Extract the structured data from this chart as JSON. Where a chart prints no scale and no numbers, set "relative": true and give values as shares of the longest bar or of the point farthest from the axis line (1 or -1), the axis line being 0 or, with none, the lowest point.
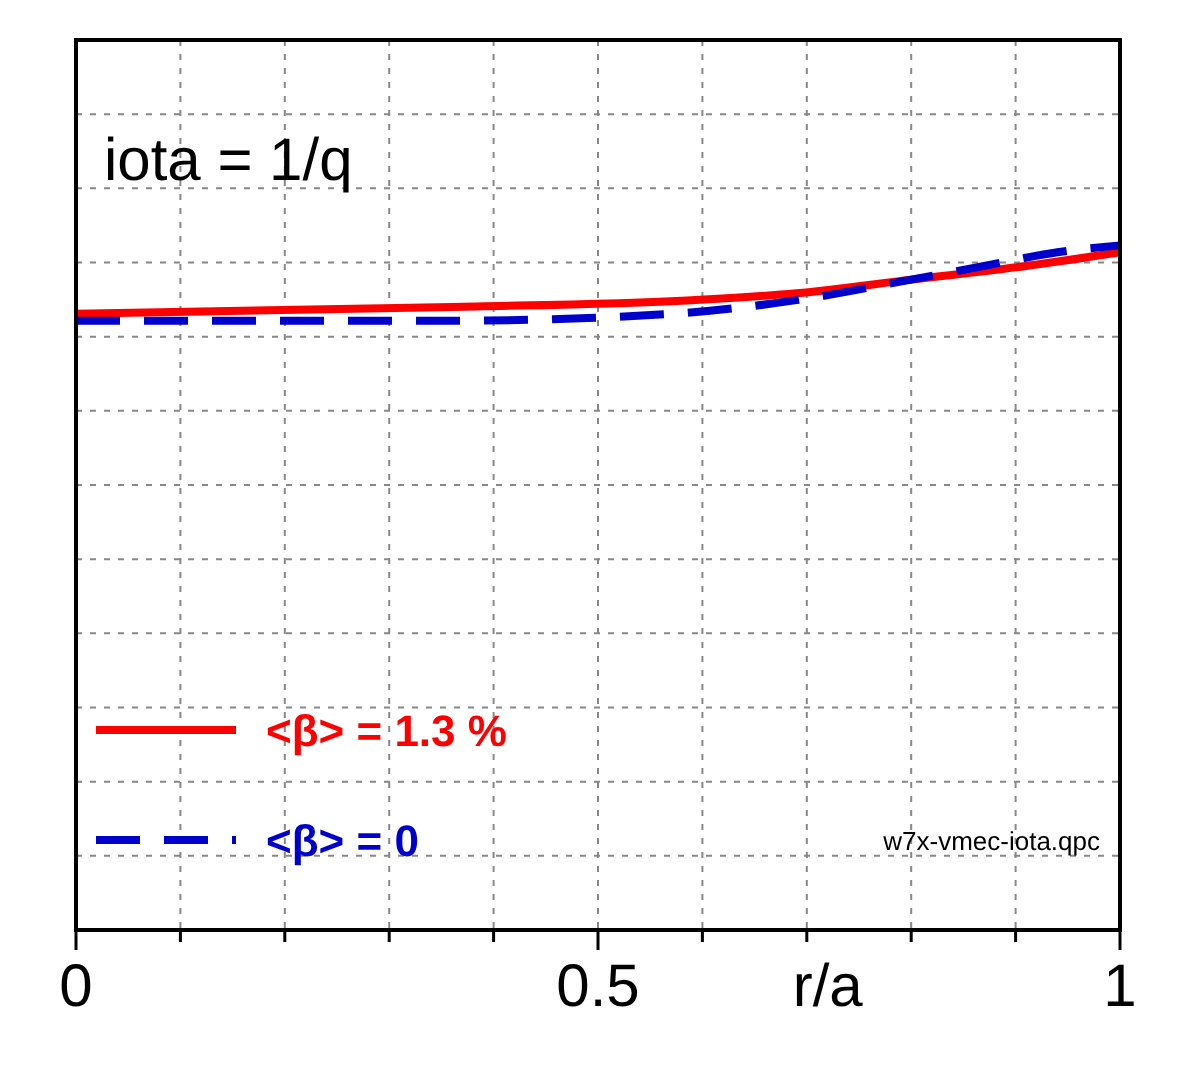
{
  "chart_data": {
    "type": "line",
    "title": "iota = 1/q",
    "xlabel": "r/a",
    "relative": true,
    "xlim": [
      0,
      1
    ],
    "xticks": [
      0,
      {
        "value": 0.1,
        "label": null
      },
      {
        "value": 0.2,
        "label": null
      },
      {
        "value": 0.3,
        "label": null
      },
      {
        "value": 0.4,
        "label": null
      },
      0.5,
      {
        "value": 0.6,
        "label": null
      },
      {
        "value": 0.7,
        "label": null
      },
      {
        "value": 0.8,
        "label": null
      },
      {
        "value": 0.9,
        "label": null
      },
      1
    ],
    "grid": true,
    "legend": "bottom left",
    "annotations": [
      "w7x-vmec-iota.qpc"
    ],
    "series": [
      {
        "name": "<β> = 1.3 %",
        "color": "#ff0000",
        "line_style": "solid",
        "x": [
          0,
          0.36,
          0.59,
          0.69,
          0.8,
          0.91,
          1
        ],
        "values": [
          0.9,
          0.91,
          0.92,
          0.93,
          0.95,
          0.97,
          0.99
        ]
      },
      {
        "name": "<β> = 0",
        "color": "#0000cc",
        "line_style": "dashed",
        "x": [
          0,
          0.36,
          0.57,
          0.69,
          0.8,
          0.87,
          0.94,
          1
        ],
        "values": [
          0.89,
          0.89,
          0.9,
          0.92,
          0.95,
          0.97,
          0.99,
          1
        ]
      }
    ]
  }
}
